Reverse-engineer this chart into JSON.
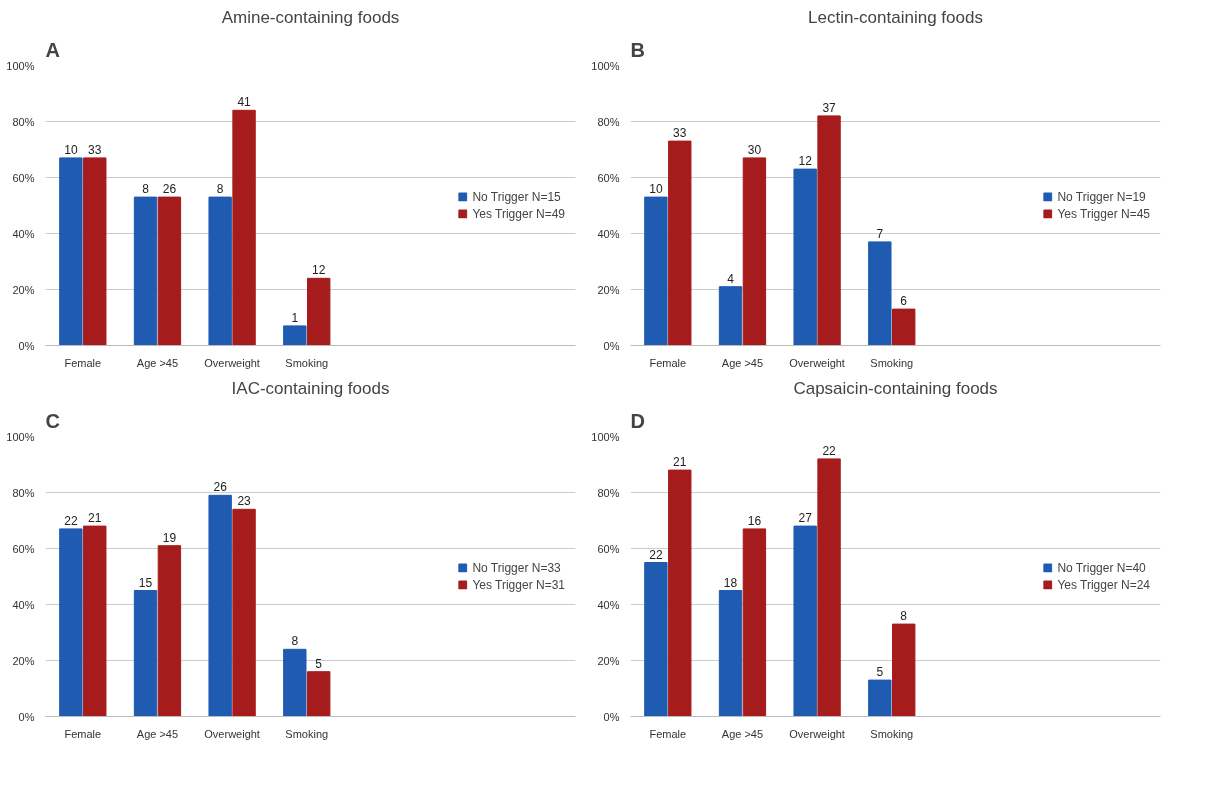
{
  "chart_data": [
    {
      "type": "bar",
      "title": "Amine-containing foods",
      "categories": [
        "Female",
        "Age >45",
        "Overweight",
        "Smoking"
      ],
      "series": [
        {
          "name": "No Trigger N=15",
          "color": "#1f5bb0",
          "values": [
            67,
            53,
            53,
            7
          ]
        },
        {
          "name": "Yes Trigger N=49",
          "color": "#a61c1c",
          "values": [
            67,
            53,
            84,
            24
          ]
        }
      ],
      "annotations": [
        "A",
        {
          "text": "10",
          "x": "Female",
          "y": 67
        },
        {
          "text": "8",
          "x": "Age >45",
          "y": 53
        },
        {
          "text": "8",
          "x": "Overweight",
          "y": 53
        },
        {
          "text": "1",
          "x": "Smoking",
          "y": 7
        },
        {
          "text": "33",
          "x": "Female",
          "y": 67
        },
        {
          "text": "26",
          "x": "Age >45",
          "y": 53
        },
        {
          "text": "41",
          "x": "Overweight",
          "y": 84
        },
        {
          "text": "12",
          "x": "Smoking",
          "y": 24
        }
      ],
      "ylim": [
        0,
        100
      ],
      "yticks": [
        {
          "value": 0,
          "label": "0%"
        },
        {
          "value": 20,
          "label": "20%"
        },
        {
          "value": 40,
          "label": "40%"
        },
        {
          "value": 60,
          "label": "60%"
        },
        {
          "value": 80,
          "label": "80%"
        },
        {
          "value": 100,
          "label": "100%"
        }
      ],
      "grid": "y",
      "legend": "right"
    },
    {
      "type": "bar",
      "title": "Lectin-containing foods",
      "categories": [
        "Female",
        "Age >45",
        "Overweight",
        "Smoking"
      ],
      "series": [
        {
          "name": "No Trigger N=19",
          "color": "#1f5bb0",
          "values": [
            53,
            21,
            63,
            37
          ]
        },
        {
          "name": "Yes Trigger N=45",
          "color": "#a61c1c",
          "values": [
            73,
            67,
            82,
            13
          ]
        }
      ],
      "annotations": [
        "B",
        {
          "text": "10",
          "x": "Female",
          "y": 53
        },
        {
          "text": "4",
          "x": "Age >45",
          "y": 21
        },
        {
          "text": "12",
          "x": "Overweight",
          "y": 63
        },
        {
          "text": "7",
          "x": "Smoking",
          "y": 37
        },
        {
          "text": "33",
          "x": "Female",
          "y": 73
        },
        {
          "text": "30",
          "x": "Age >45",
          "y": 67
        },
        {
          "text": "37",
          "x": "Overweight",
          "y": 82
        },
        {
          "text": "6",
          "x": "Smoking",
          "y": 13
        }
      ],
      "ylim": [
        0,
        100
      ],
      "yticks": [
        {
          "value": 0,
          "label": "0%"
        },
        {
          "value": 20,
          "label": "20%"
        },
        {
          "value": 40,
          "label": "40%"
        },
        {
          "value": 60,
          "label": "60%"
        },
        {
          "value": 80,
          "label": "80%"
        },
        {
          "value": 100,
          "label": "100%"
        }
      ],
      "grid": "y",
      "legend": "right"
    },
    {
      "type": "bar",
      "title": "IAC-containing foods",
      "categories": [
        "Female",
        "Age >45",
        "Overweight",
        "Smoking"
      ],
      "series": [
        {
          "name": "No Trigger N=33",
          "color": "#1f5bb0",
          "values": [
            67,
            45,
            79,
            24
          ]
        },
        {
          "name": "Yes Trigger N=31",
          "color": "#a61c1c",
          "values": [
            68,
            61,
            74,
            16
          ]
        }
      ],
      "annotations": [
        "C",
        {
          "text": "22",
          "x": "Female",
          "y": 67
        },
        {
          "text": "15",
          "x": "Age >45",
          "y": 45
        },
        {
          "text": "26",
          "x": "Overweight",
          "y": 79
        },
        {
          "text": "8",
          "x": "Smoking",
          "y": 24
        },
        {
          "text": "21",
          "x": "Female",
          "y": 68
        },
        {
          "text": "19",
          "x": "Age >45",
          "y": 61
        },
        {
          "text": "23",
          "x": "Overweight",
          "y": 74
        },
        {
          "text": "5",
          "x": "Smoking",
          "y": 16
        }
      ],
      "ylim": [
        0,
        100
      ],
      "yticks": [
        {
          "value": 0,
          "label": "0%"
        },
        {
          "value": 20,
          "label": "20%"
        },
        {
          "value": 40,
          "label": "40%"
        },
        {
          "value": 60,
          "label": "60%"
        },
        {
          "value": 80,
          "label": "80%"
        },
        {
          "value": 100,
          "label": "100%"
        }
      ],
      "grid": "y",
      "legend": "right"
    },
    {
      "type": "bar",
      "title": "Capsaicin-containing foods",
      "categories": [
        "Female",
        "Age >45",
        "Overweight",
        "Smoking"
      ],
      "series": [
        {
          "name": "No Trigger N=40",
          "color": "#1f5bb0",
          "values": [
            55,
            45,
            68,
            13
          ]
        },
        {
          "name": "Yes Trigger N=24",
          "color": "#a61c1c",
          "values": [
            88,
            67,
            92,
            33
          ]
        }
      ],
      "annotations": [
        "D",
        {
          "text": "22",
          "x": "Female",
          "y": 55
        },
        {
          "text": "18",
          "x": "Age >45",
          "y": 45
        },
        {
          "text": "27",
          "x": "Overweight",
          "y": 68
        },
        {
          "text": "5",
          "x": "Smoking",
          "y": 13
        },
        {
          "text": "21",
          "x": "Female",
          "y": 88
        },
        {
          "text": "16",
          "x": "Age >45",
          "y": 67
        },
        {
          "text": "22",
          "x": "Overweight",
          "y": 92
        },
        {
          "text": "8",
          "x": "Smoking",
          "y": 33
        }
      ],
      "ylim": [
        0,
        100
      ],
      "yticks": [
        {
          "value": 0,
          "label": "0%"
        },
        {
          "value": 20,
          "label": "20%"
        },
        {
          "value": 40,
          "label": "40%"
        },
        {
          "value": 60,
          "label": "60%"
        },
        {
          "value": 80,
          "label": "80%"
        },
        {
          "value": 100,
          "label": "100%"
        }
      ],
      "grid": "y",
      "legend": "right"
    }
  ]
}
